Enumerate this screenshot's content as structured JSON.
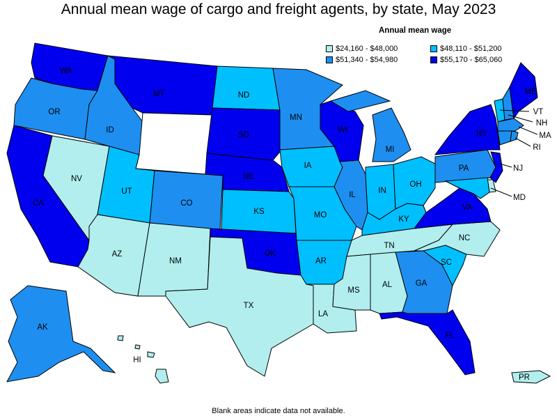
{
  "title": "Annual mean wage of cargo and freight agents, by state, May 2023",
  "legend": {
    "title": "Annual mean wage",
    "items": [
      {
        "label": "$24,160 - $48,000",
        "color": "#b2eeee"
      },
      {
        "label": "$48,110 - $51,200",
        "color": "#00bfff"
      },
      {
        "label": "$51,340 - $54,980",
        "color": "#1e8ff0"
      },
      {
        "label": "$55,170 - $65,060",
        "color": "#0000ee"
      }
    ]
  },
  "footnote": "Blank areas indicate data not available.",
  "states": {
    "WA": {
      "label": "WA",
      "color": "#0000ee"
    },
    "OR": {
      "label": "OR",
      "color": "#1e8ff0"
    },
    "CA": {
      "label": "CA",
      "color": "#0000ee"
    },
    "NV": {
      "label": "NV",
      "color": "#b2eeee"
    },
    "ID": {
      "label": "ID",
      "color": "#1e8ff0"
    },
    "MT": {
      "label": "MT",
      "color": "#0000ee"
    },
    "WY": {
      "label": "",
      "color": "#ffffff"
    },
    "UT": {
      "label": "UT",
      "color": "#00bfff"
    },
    "AZ": {
      "label": "AZ",
      "color": "#b2eeee"
    },
    "CO": {
      "label": "CO",
      "color": "#1e8ff0"
    },
    "NM": {
      "label": "NM",
      "color": "#b2eeee"
    },
    "ND": {
      "label": "ND",
      "color": "#00bfff"
    },
    "SD": {
      "label": "SD",
      "color": "#0000ee"
    },
    "NE": {
      "label": "NE",
      "color": "#0000ee"
    },
    "KS": {
      "label": "KS",
      "color": "#00bfff"
    },
    "OK": {
      "label": "OK",
      "color": "#0000ee"
    },
    "TX": {
      "label": "TX",
      "color": "#b2eeee"
    },
    "MN": {
      "label": "MN",
      "color": "#1e8ff0"
    },
    "IA": {
      "label": "IA",
      "color": "#00bfff"
    },
    "MO": {
      "label": "MO",
      "color": "#00bfff"
    },
    "AR": {
      "label": "AR",
      "color": "#00bfff"
    },
    "LA": {
      "label": "LA",
      "color": "#b2eeee"
    },
    "WI": {
      "label": "WI",
      "color": "#0000ee"
    },
    "IL": {
      "label": "IL",
      "color": "#1e8ff0"
    },
    "MI": {
      "label": "MI",
      "color": "#1e8ff0"
    },
    "IN": {
      "label": "IN",
      "color": "#00bfff"
    },
    "OH": {
      "label": "OH",
      "color": "#00bfff"
    },
    "KY": {
      "label": "KY",
      "color": "#00bfff"
    },
    "TN": {
      "label": "TN",
      "color": "#b2eeee"
    },
    "MS": {
      "label": "MS",
      "color": "#b2eeee"
    },
    "AL": {
      "label": "AL",
      "color": "#b2eeee"
    },
    "GA": {
      "label": "GA",
      "color": "#1e8ff0"
    },
    "FL": {
      "label": "FL",
      "color": "#0000ee"
    },
    "SC": {
      "label": "SC",
      "color": "#00bfff"
    },
    "NC": {
      "label": "NC",
      "color": "#b2eeee"
    },
    "VA": {
      "label": "VA",
      "color": "#0000ee"
    },
    "WV": {
      "label": "",
      "color": "#ffffff"
    },
    "PA": {
      "label": "PA",
      "color": "#1e8ff0"
    },
    "NY": {
      "label": "NY",
      "color": "#0000ee"
    },
    "ME": {
      "label": "ME",
      "color": "#0000ee"
    },
    "VT": {
      "label": "VT",
      "color": "#00bfff"
    },
    "NH": {
      "label": "NH",
      "color": "#1e8ff0"
    },
    "MA": {
      "label": "MA",
      "color": "#1e8ff0"
    },
    "RI": {
      "label": "RI",
      "color": "#1e8ff0"
    },
    "CT": {
      "label": "",
      "color": "#1e8ff0"
    },
    "NJ": {
      "label": "NJ",
      "color": "#0000ee"
    },
    "DE": {
      "label": "",
      "color": "#b2eeee"
    },
    "MD": {
      "label": "MD",
      "color": "#00bfff"
    },
    "AK": {
      "label": "AK",
      "color": "#1e8ff0"
    },
    "HI": {
      "label": "HI",
      "color": "#b2eeee"
    },
    "PR": {
      "label": "PR",
      "color": "#b2eeee"
    }
  }
}
